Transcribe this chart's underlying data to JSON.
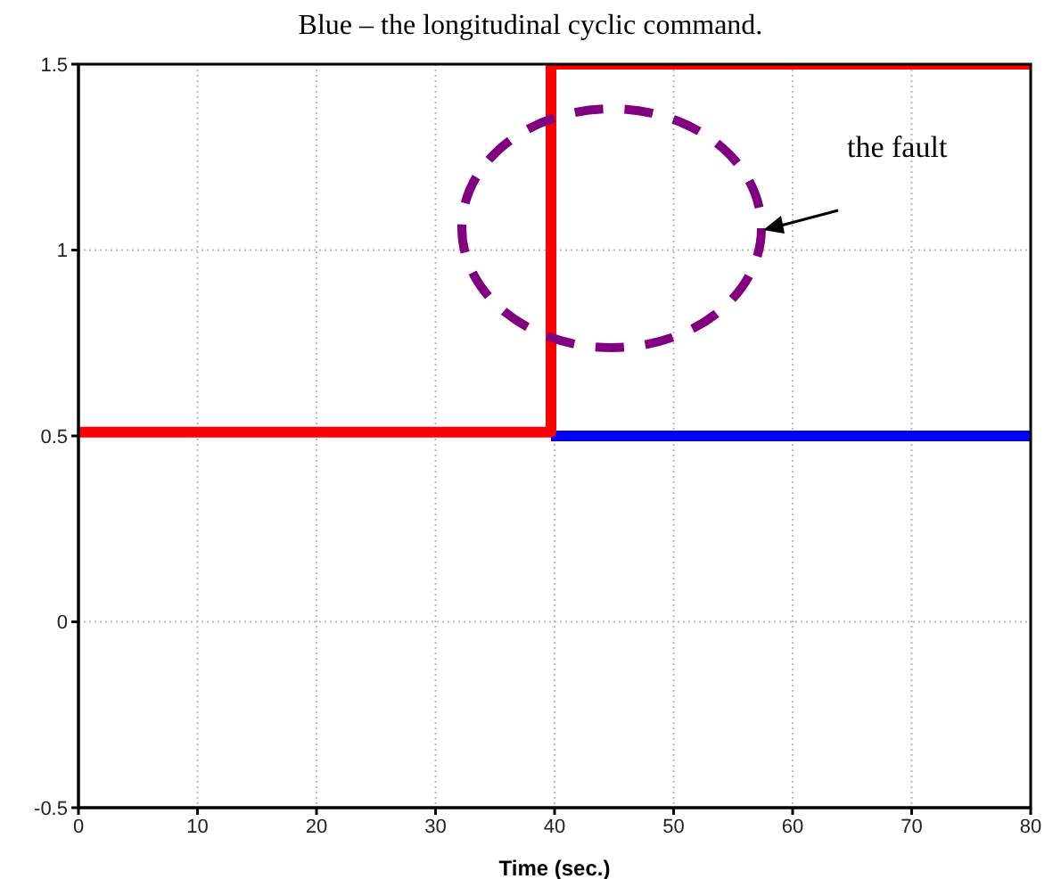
{
  "chart_data": {
    "type": "line",
    "title": "Blue – the longitudinal cyclic command.",
    "xlabel": "Time (sec.)",
    "series": [
      {
        "color": "#0000ff",
        "x": [
          39.7,
          80
        ],
        "values": [
          0.5,
          0.5
        ]
      },
      {
        "color": "#ff0000",
        "x": [
          0,
          39.7,
          39.7,
          80
        ],
        "values": [
          0.51,
          0.51,
          1.5,
          1.5
        ]
      }
    ],
    "annotations": [
      "the fault"
    ],
    "xlim": [
      0,
      80
    ],
    "xticks": [
      0,
      10,
      20,
      30,
      40,
      50,
      60,
      70,
      80
    ],
    "ylim": [
      -0.5,
      1.5
    ],
    "yticks": [
      -0.5,
      0,
      0.5,
      1,
      1.5
    ],
    "grid": true,
    "marker": "none",
    "line_style": "solid"
  }
}
